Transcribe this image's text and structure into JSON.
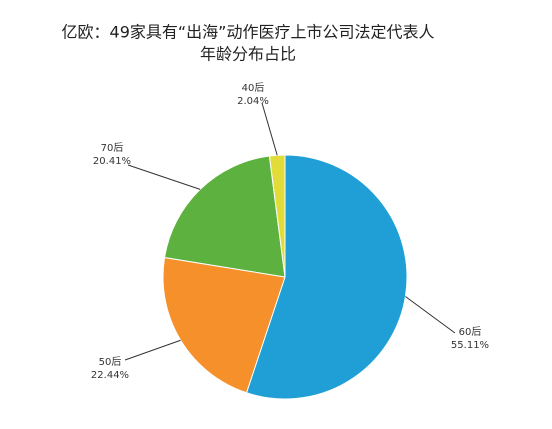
{
  "chart_data": {
    "type": "pie",
    "title": [
      "亿欧：49家具有“出海”动作医疗上市公司法定代表人",
      "年龄分布占比"
    ],
    "categories": [
      "60后",
      "50后",
      "70后",
      "40后"
    ],
    "values": [
      55.11,
      22.44,
      20.41,
      2.04
    ],
    "value_labels": [
      "55.11%",
      "22.44%",
      "20.41%",
      "2.04%"
    ],
    "colors": [
      "#1f9fd5",
      "#f5902a",
      "#5db13e",
      "#e2dc3a"
    ]
  }
}
